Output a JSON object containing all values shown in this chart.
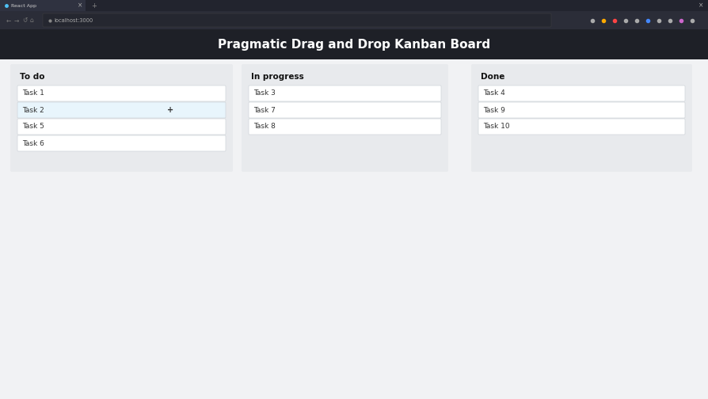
{
  "title": "Pragmatic Drag and Drop Kanban Board",
  "title_color": "#ffffff",
  "title_bg": "#1e2027",
  "page_bg": "#f1f2f4",
  "browser_tab_bg": "#22242e",
  "browser_tab_active_bg": "#2f3240",
  "browser_bar_bg": "#2b2d38",
  "tab_text": "React App",
  "url_text": "localhost:3000",
  "board_bg": "#f1f2f4",
  "columns": [
    {
      "label": "To do",
      "tasks": [
        "Task 1",
        "Task 2",
        "Task 5",
        "Task 6"
      ],
      "highlighted": "Task 2"
    },
    {
      "label": "In progress",
      "tasks": [
        "Task 3",
        "Task 7",
        "Task 8"
      ],
      "highlighted": null
    },
    {
      "label": "Done",
      "tasks": [
        "Task 4",
        "Task 9",
        "Task 10"
      ],
      "highlighted": null
    }
  ],
  "column_bg": "#e8eaed",
  "task_bg": "#ffffff",
  "task_highlight_bg": "#e8f5fc",
  "task_border": "#d0d4da",
  "task_text_color": "#333333",
  "col_label_color": "#111111",
  "col_label_fontsize": 7.5,
  "task_fontsize": 6.5,
  "plus_symbol": "+"
}
